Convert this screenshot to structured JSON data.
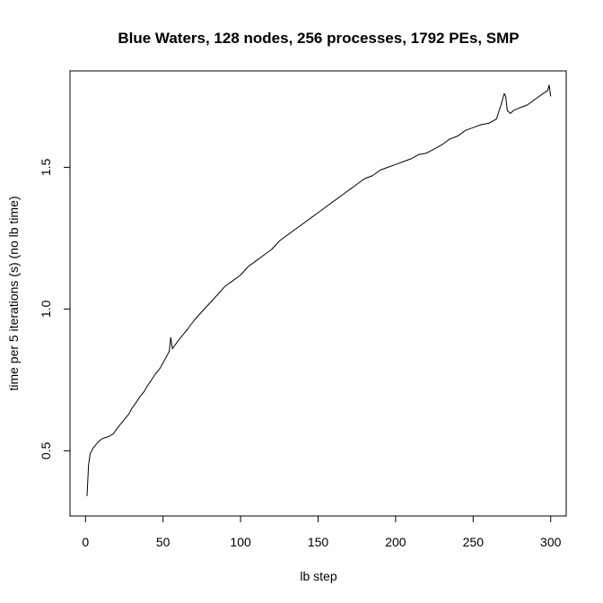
{
  "chart_data": {
    "type": "line",
    "title": "Blue Waters, 128 nodes, 256 processes, 1792 PEs, SMP",
    "xlabel": "lb step",
    "ylabel": "time per 5 iterations (s) (no lb time)",
    "xlim": [
      -10,
      310
    ],
    "ylim": [
      0.27,
      1.84
    ],
    "xticks": [
      0,
      50,
      100,
      150,
      200,
      250,
      300
    ],
    "yticks": [
      0.5,
      1.0,
      1.5
    ],
    "ytick_labels": [
      "0.5",
      "1.0",
      "1.5"
    ],
    "grid": false,
    "series": [
      {
        "color": "#000000",
        "x": [
          1,
          2,
          3,
          5,
          8,
          10,
          12,
          15,
          18,
          20,
          22,
          25,
          28,
          30,
          32,
          35,
          38,
          40,
          42,
          45,
          48,
          50,
          52,
          54,
          55,
          56,
          58,
          60,
          63,
          66,
          70,
          75,
          80,
          85,
          90,
          95,
          100,
          105,
          110,
          115,
          120,
          125,
          130,
          135,
          140,
          145,
          150,
          155,
          160,
          165,
          170,
          175,
          180,
          185,
          190,
          195,
          200,
          205,
          210,
          215,
          220,
          225,
          230,
          235,
          240,
          245,
          250,
          255,
          260,
          265,
          268,
          270,
          271,
          272,
          274,
          276,
          280,
          285,
          290,
          295,
          298,
          299,
          300
        ],
        "y": [
          0.34,
          0.45,
          0.49,
          0.51,
          0.53,
          0.54,
          0.545,
          0.55,
          0.56,
          0.575,
          0.59,
          0.61,
          0.63,
          0.65,
          0.665,
          0.69,
          0.71,
          0.73,
          0.745,
          0.77,
          0.79,
          0.81,
          0.83,
          0.85,
          0.9,
          0.86,
          0.875,
          0.89,
          0.91,
          0.93,
          0.96,
          0.99,
          1.02,
          1.05,
          1.08,
          1.1,
          1.12,
          1.15,
          1.17,
          1.19,
          1.21,
          1.24,
          1.26,
          1.28,
          1.3,
          1.32,
          1.34,
          1.36,
          1.38,
          1.4,
          1.42,
          1.44,
          1.46,
          1.47,
          1.49,
          1.5,
          1.51,
          1.52,
          1.53,
          1.545,
          1.55,
          1.565,
          1.58,
          1.6,
          1.61,
          1.63,
          1.64,
          1.65,
          1.655,
          1.67,
          1.72,
          1.76,
          1.75,
          1.7,
          1.69,
          1.7,
          1.71,
          1.72,
          1.74,
          1.76,
          1.77,
          1.79,
          1.75
        ]
      }
    ]
  }
}
